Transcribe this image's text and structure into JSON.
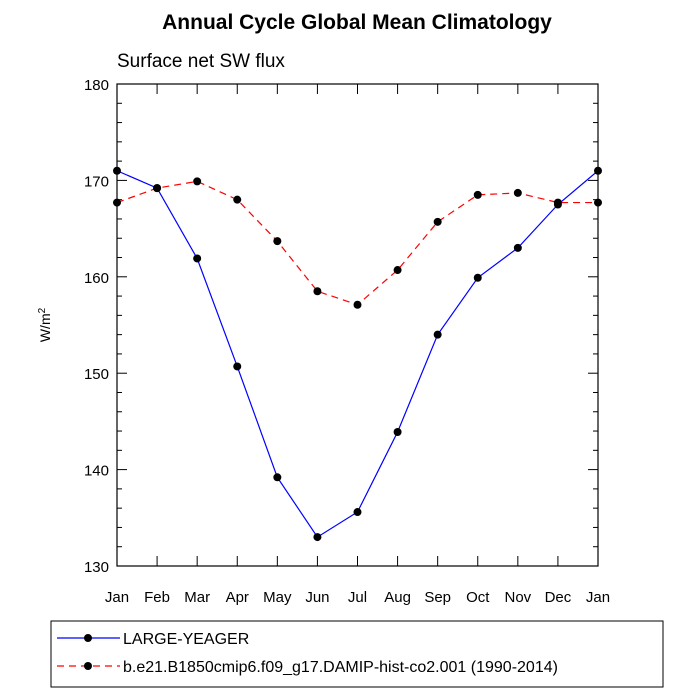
{
  "chart_data": {
    "type": "line",
    "title": "Annual Cycle Global Mean Climatology",
    "subtitle": "Surface net SW flux",
    "ylabel_base": "W/m",
    "ylabel_sup": "2",
    "xlabel": "",
    "categories": [
      "Jan",
      "Feb",
      "Mar",
      "Apr",
      "May",
      "Jun",
      "Jul",
      "Aug",
      "Sep",
      "Oct",
      "Nov",
      "Dec",
      "Jan"
    ],
    "ylim": [
      130,
      180
    ],
    "yticks": [
      130,
      140,
      150,
      160,
      170,
      180
    ],
    "grid": false,
    "legend_position": "bottom",
    "series": [
      {
        "name": "LARGE-YEAGER",
        "color": "#0000ff",
        "style": "solid",
        "values": [
          171.0,
          169.2,
          161.9,
          150.7,
          139.2,
          133.0,
          135.6,
          143.9,
          154.0,
          159.9,
          163.0,
          167.5,
          171.0
        ]
      },
      {
        "name": "b.e21.B1850cmip6.f09_g17.DAMIP-hist-co2.001 (1990-2014)",
        "color": "#ff0000",
        "style": "dashed",
        "values": [
          167.7,
          169.2,
          169.9,
          168.0,
          163.7,
          158.5,
          157.1,
          160.7,
          165.7,
          168.5,
          168.7,
          167.7,
          167.7
        ]
      }
    ]
  }
}
